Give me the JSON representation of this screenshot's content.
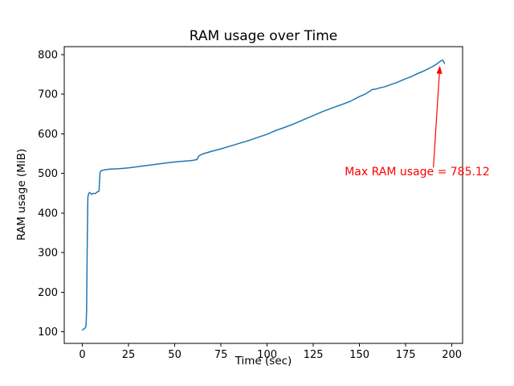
{
  "chart_data": {
    "type": "line",
    "title": "RAM usage over Time",
    "xlabel": "Time (sec)",
    "ylabel": "RAM usage (MiB)",
    "xlim": [
      -9.8,
      205.8
    ],
    "ylim": [
      71,
      820
    ],
    "xticks": [
      0,
      25,
      50,
      75,
      100,
      125,
      150,
      175,
      200
    ],
    "yticks": [
      100,
      200,
      300,
      400,
      500,
      600,
      700,
      800
    ],
    "grid": false,
    "legend": null,
    "line_color": "#1f77b4",
    "background_color": "#ffffff",
    "series": [
      {
        "name": "RAM usage",
        "points": [
          [
            0,
            105
          ],
          [
            0.5,
            106
          ],
          [
            1,
            108
          ],
          [
            1.5,
            110
          ],
          [
            2,
            115
          ],
          [
            2.3,
            150
          ],
          [
            2.6,
            300
          ],
          [
            3,
            440
          ],
          [
            3.5,
            450
          ],
          [
            4,
            452
          ],
          [
            5,
            447
          ],
          [
            6,
            450
          ],
          [
            7,
            449
          ],
          [
            8,
            453
          ],
          [
            9,
            455
          ],
          [
            9.3,
            480
          ],
          [
            9.6,
            503
          ],
          [
            10,
            506
          ],
          [
            11,
            508
          ],
          [
            12,
            509
          ],
          [
            15,
            511
          ],
          [
            20,
            512
          ],
          [
            25,
            514
          ],
          [
            30,
            517
          ],
          [
            35,
            520
          ],
          [
            40,
            523
          ],
          [
            45,
            526
          ],
          [
            50,
            529
          ],
          [
            55,
            531
          ],
          [
            58,
            532
          ],
          [
            60,
            533
          ],
          [
            62,
            535
          ],
          [
            63,
            544
          ],
          [
            65,
            549
          ],
          [
            68,
            553
          ],
          [
            70,
            556
          ],
          [
            75,
            562
          ],
          [
            80,
            569
          ],
          [
            85,
            576
          ],
          [
            90,
            583
          ],
          [
            95,
            591
          ],
          [
            100,
            599
          ],
          [
            103,
            605
          ],
          [
            105,
            609
          ],
          [
            110,
            617
          ],
          [
            115,
            626
          ],
          [
            120,
            636
          ],
          [
            125,
            646
          ],
          [
            130,
            656
          ],
          [
            135,
            665
          ],
          [
            138,
            670
          ],
          [
            140,
            673
          ],
          [
            145,
            682
          ],
          [
            150,
            694
          ],
          [
            153,
            700
          ],
          [
            155,
            706
          ],
          [
            157,
            712
          ],
          [
            159,
            713
          ],
          [
            161,
            716
          ],
          [
            163,
            718
          ],
          [
            165,
            721
          ],
          [
            168,
            726
          ],
          [
            170,
            729
          ],
          [
            175,
            739
          ],
          [
            178,
            744
          ],
          [
            180,
            749
          ],
          [
            183,
            755
          ],
          [
            185,
            759
          ],
          [
            188,
            766
          ],
          [
            190,
            771
          ],
          [
            192,
            777
          ],
          [
            194,
            784
          ],
          [
            195,
            786
          ],
          [
            196,
            778
          ]
        ]
      }
    ],
    "annotation": {
      "text": "Max RAM usage = 785.12",
      "max_value": 785.12,
      "color": "#ff0000",
      "text_xy": [
        142,
        495
      ],
      "arrow_from": [
        190,
        515
      ],
      "arrow_to": [
        193.5,
        772
      ]
    }
  }
}
